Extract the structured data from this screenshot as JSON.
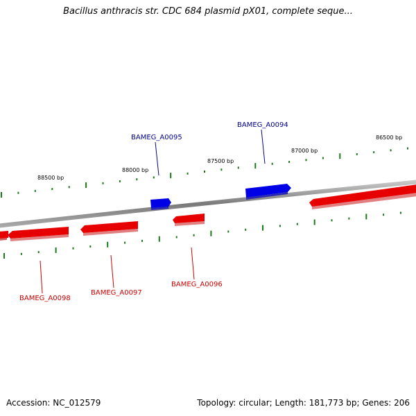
{
  "title": "Bacillus anthracis str. CDC 684 plasmid pX01, complete seque...",
  "footer": {
    "accession": "Accession: NC_012579",
    "summary": "Topology: circular; Length: 181,773 bp; Genes: 206"
  },
  "colors": {
    "background": "#ffffff",
    "backbone": "#8a8a8a",
    "forward_gene": "#0000e6",
    "reverse_gene": "#e60000",
    "forward_label": "#00008b",
    "reverse_label": "#cc0000",
    "tick": "#1a7a1a",
    "tick_label": "#000000"
  },
  "ruler_labels": [
    "88500 bp",
    "88000 bp",
    "87500 bp",
    "87000 bp",
    "86500 bp"
  ],
  "gene_labels": {
    "forward": [
      "BAMEG_A0095",
      "BAMEG_A0094"
    ],
    "reverse": [
      "BAMEG_A0098",
      "BAMEG_A0097",
      "BAMEG_A0096"
    ]
  }
}
